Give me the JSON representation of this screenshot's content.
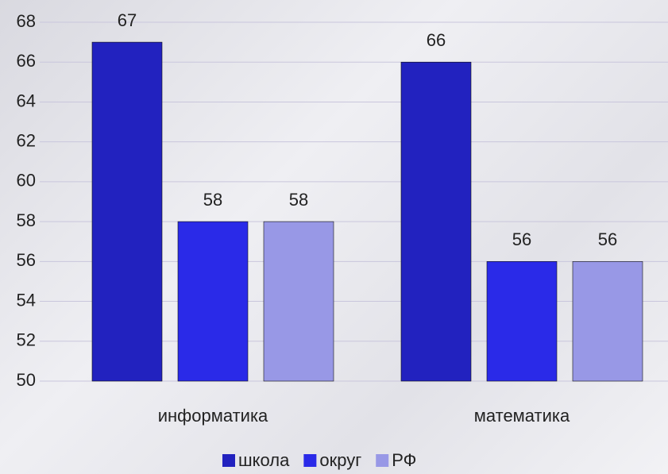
{
  "chart_data": {
    "type": "bar",
    "categories": [
      "информатика",
      "математика"
    ],
    "series": [
      {
        "name": "школа",
        "color": "#2222bf",
        "values": [
          67,
          66
        ]
      },
      {
        "name": "округ",
        "color": "#2a2ae8",
        "values": [
          58,
          56
        ]
      },
      {
        "name": "РФ",
        "color": "#9898e6",
        "values": [
          58,
          56
        ]
      }
    ],
    "ylim": [
      50,
      68
    ],
    "yticks": [
      50,
      52,
      54,
      56,
      58,
      60,
      62,
      64,
      66,
      68
    ],
    "grid": true,
    "legend": "bottom"
  }
}
